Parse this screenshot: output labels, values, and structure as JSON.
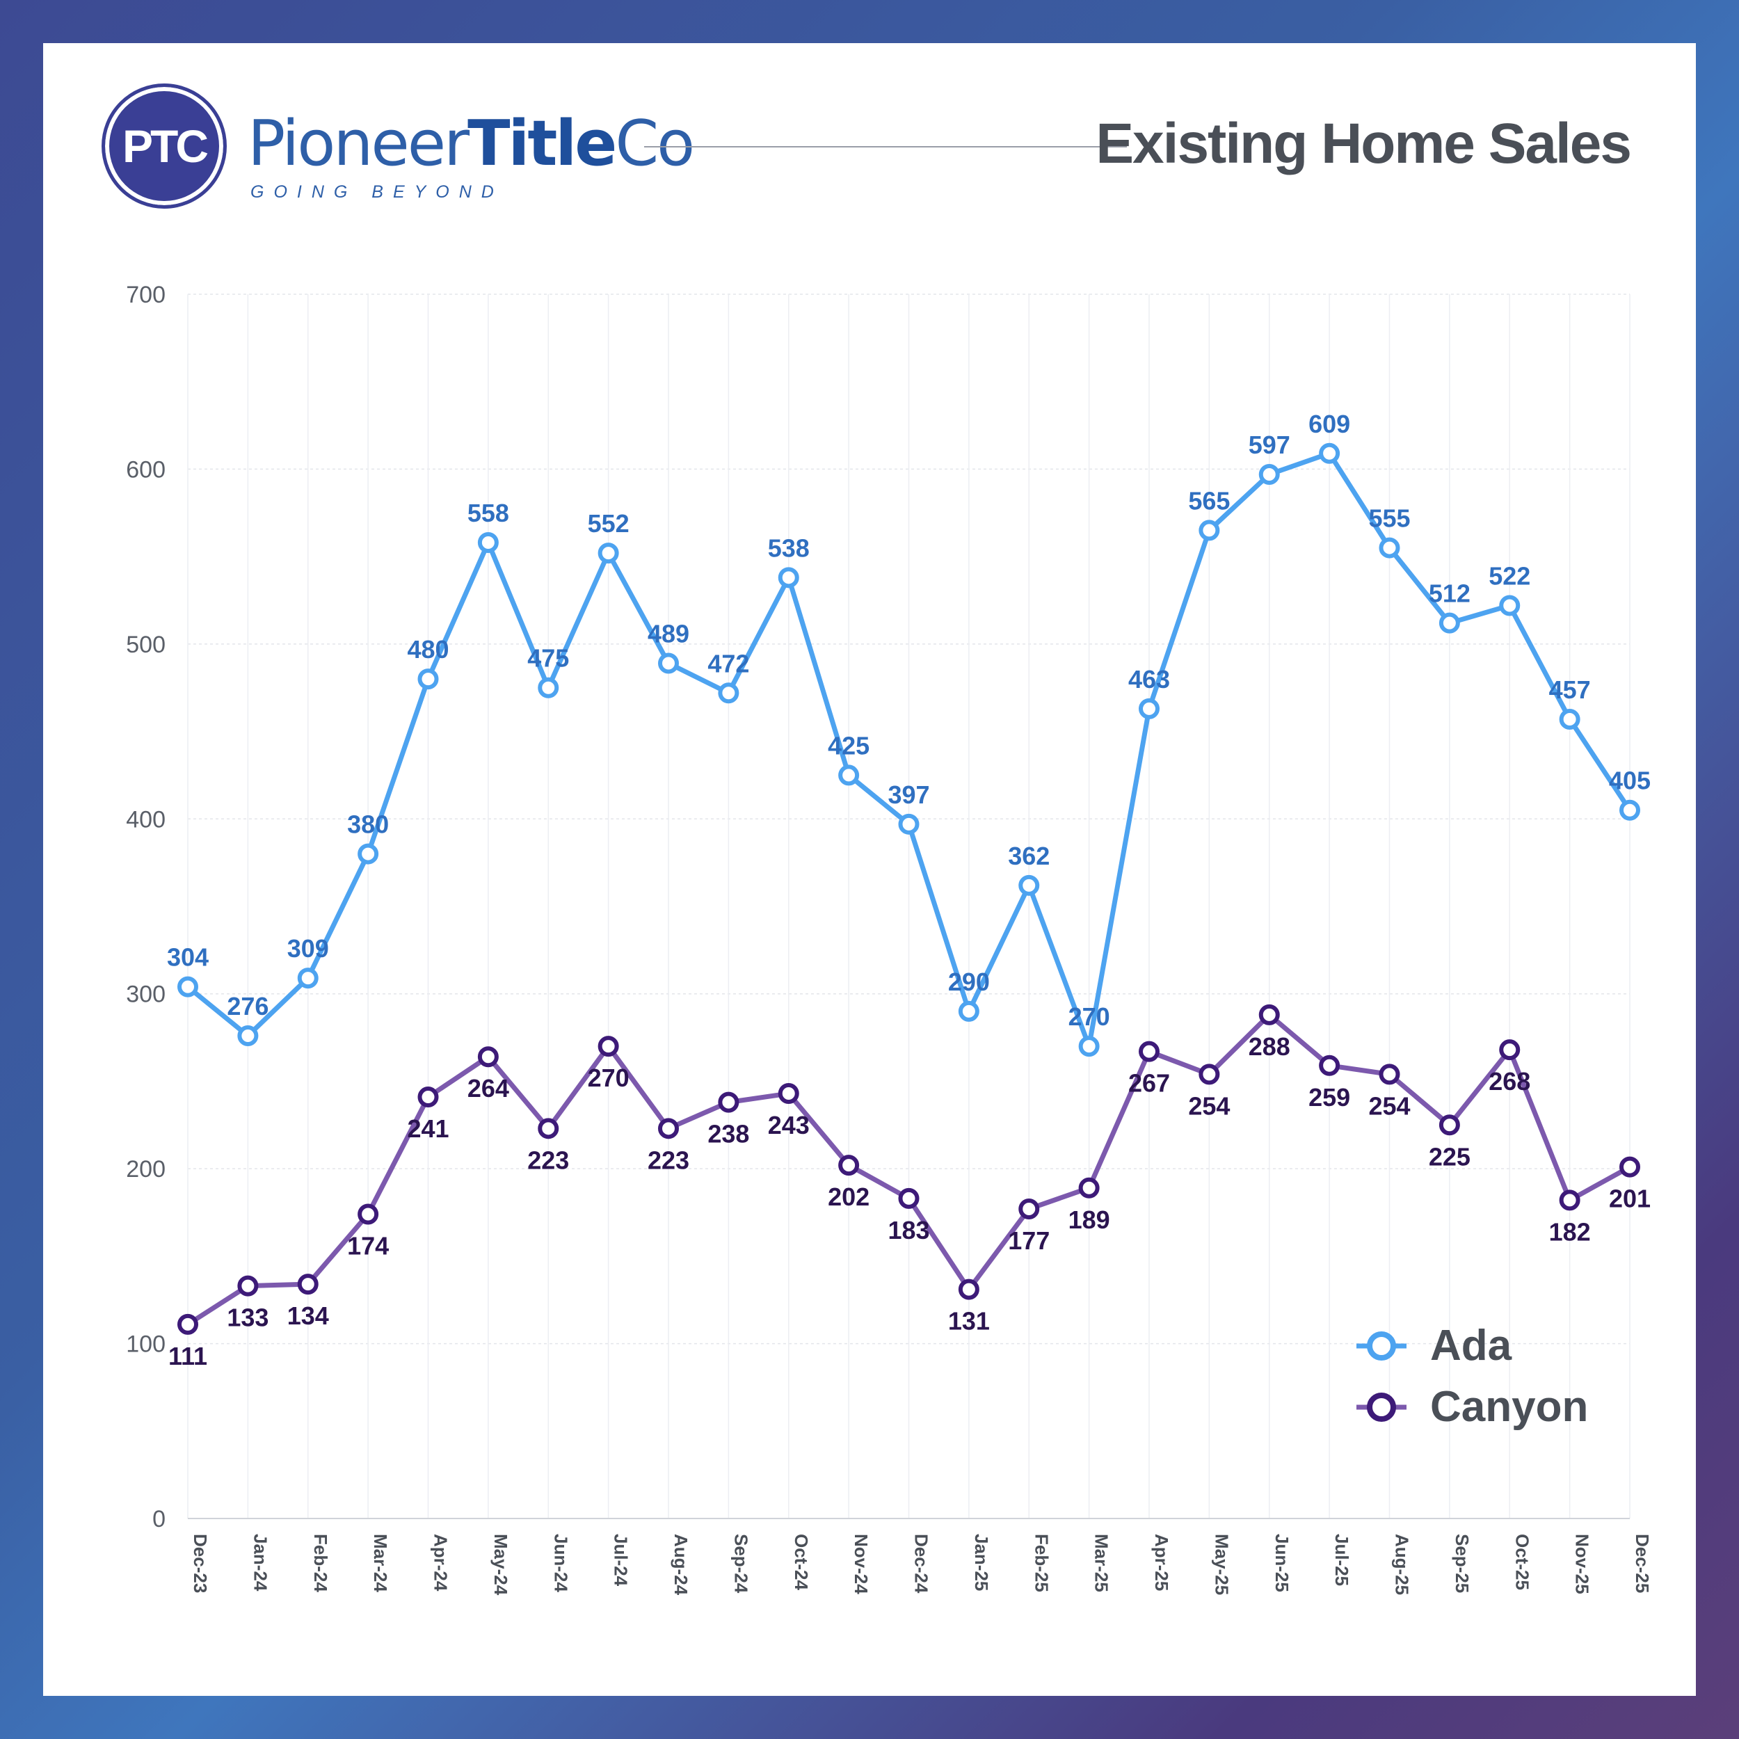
{
  "brand": {
    "logo_initials": "PTC",
    "name_part1": "Pioneer",
    "name_part2": "Title",
    "name_part3": "Co",
    "tagline": "GOING BEYOND"
  },
  "title": "Existing Home Sales",
  "legend": {
    "ada_label": "Ada",
    "canyon_label": "Canyon"
  },
  "colors": {
    "ada": "#4da3f0",
    "ada_label": "#2f6fc0",
    "canyon": "#7c59ad",
    "canyon_marker": "#3d1a78",
    "canyon_label": "#2b1450"
  },
  "chart_data": {
    "type": "line",
    "title": "Existing Home Sales",
    "xlabel": "",
    "ylabel": "",
    "ylim": [
      0,
      700
    ],
    "yticks": [
      0,
      100,
      200,
      300,
      400,
      500,
      600,
      700
    ],
    "grid": true,
    "legend_position": "bottom-right",
    "categories": [
      "Dec-23",
      "Jan-24",
      "Feb-24",
      "Mar-24",
      "Apr-24",
      "May-24",
      "Jun-24",
      "Jul-24",
      "Aug-24",
      "Sep-24",
      "Oct-24",
      "Nov-24",
      "Dec-24",
      "Jan-25",
      "Feb-25",
      "Mar-25",
      "Apr-25",
      "May-25",
      "Jun-25",
      "Jul-25",
      "Aug-25",
      "Sep-25",
      "Oct-25",
      "Nov-25",
      "Dec-25"
    ],
    "series": [
      {
        "name": "Ada",
        "values": [
          304,
          276,
          309,
          380,
          480,
          558,
          475,
          552,
          489,
          472,
          538,
          425,
          397,
          290,
          362,
          270,
          463,
          565,
          597,
          609,
          555,
          512,
          522,
          457,
          405
        ]
      },
      {
        "name": "Canyon",
        "values": [
          111,
          133,
          134,
          174,
          241,
          264,
          223,
          270,
          223,
          238,
          243,
          202,
          183,
          131,
          177,
          189,
          267,
          254,
          288,
          259,
          254,
          225,
          268,
          182,
          201
        ]
      }
    ]
  }
}
